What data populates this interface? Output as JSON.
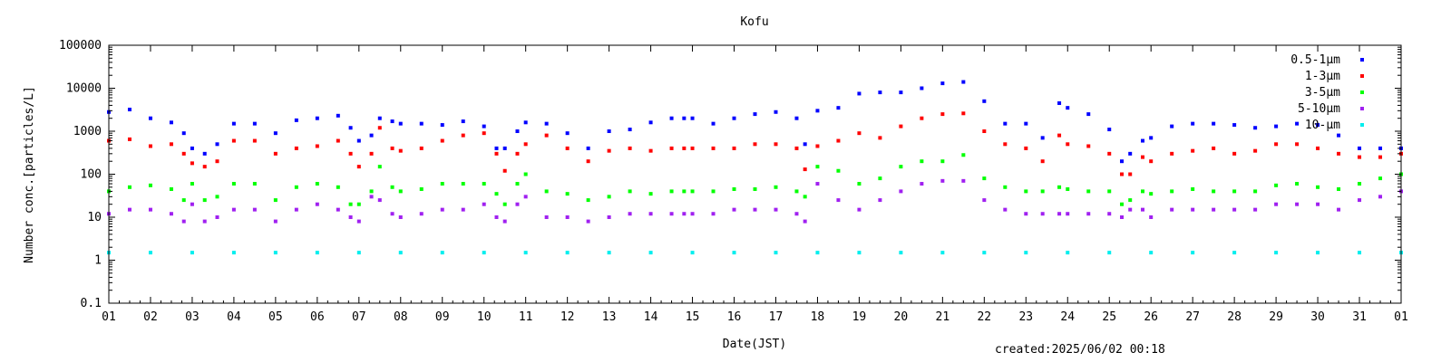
{
  "chart_data": {
    "type": "scatter",
    "title": "Kofu",
    "xlabel": "Date(JST)",
    "ylabel": "Number conc.[particles/L]",
    "yscale": "log",
    "ylim": [
      0.1,
      100000
    ],
    "y_ticks": [
      "0.1",
      "1",
      "10",
      "100",
      "1000",
      "10000",
      "100000"
    ],
    "xlim": [
      1,
      32
    ],
    "x_ticks": [
      "01",
      "02",
      "03",
      "04",
      "05",
      "06",
      "07",
      "08",
      "09",
      "10",
      "11",
      "12",
      "13",
      "14",
      "15",
      "16",
      "17",
      "18",
      "19",
      "20",
      "21",
      "22",
      "23",
      "24",
      "25",
      "26",
      "27",
      "28",
      "29",
      "30",
      "31",
      "01"
    ],
    "legend_position": "top-right",
    "grid": false,
    "footer": "created:2025/06/02 00:18",
    "series": [
      {
        "name": "0.5-1μm",
        "color": "#0000ff",
        "x": [
          1.0,
          1.5,
          2.0,
          2.5,
          2.8,
          3.0,
          3.3,
          3.6,
          4.0,
          4.5,
          5.0,
          5.5,
          6.0,
          6.5,
          6.8,
          7.0,
          7.3,
          7.5,
          7.8,
          8.0,
          8.5,
          9.0,
          9.5,
          10.0,
          10.3,
          10.5,
          10.8,
          11.0,
          11.5,
          12.0,
          12.5,
          13.0,
          13.5,
          14.0,
          14.5,
          14.8,
          15.0,
          15.5,
          16.0,
          16.5,
          17.0,
          17.5,
          17.7,
          18.0,
          18.5,
          19.0,
          19.5,
          20.0,
          20.5,
          21.0,
          21.5,
          22.0,
          22.5,
          23.0,
          23.4,
          23.8,
          24.0,
          24.5,
          25.0,
          25.3,
          25.5,
          25.8,
          26.0,
          26.5,
          27.0,
          27.5,
          28.0,
          28.5,
          29.0,
          29.5,
          30.0,
          30.5,
          31.0,
          31.5,
          32.0
        ],
        "y": [
          2800,
          3200,
          2000,
          1600,
          900,
          400,
          300,
          500,
          1500,
          1500,
          900,
          1800,
          2000,
          2300,
          1200,
          600,
          800,
          2000,
          1700,
          1500,
          1500,
          1400,
          1700,
          1300,
          400,
          400,
          1000,
          1600,
          1500,
          900,
          400,
          1000,
          1100,
          1600,
          2000,
          2000,
          2000,
          1500,
          2000,
          2500,
          2800,
          2000,
          500,
          3000,
          3500,
          7500,
          8000,
          8000,
          10000,
          13000,
          14000,
          5000,
          1500,
          1500,
          700,
          4500,
          3500,
          2500,
          1100,
          200,
          300,
          600,
          700,
          1300,
          1500,
          1500,
          1400,
          1200,
          1300,
          1500,
          1400,
          800,
          400,
          400,
          400
        ]
      },
      {
        "name": "1-3μm",
        "color": "#ff0000",
        "x": [
          1.0,
          1.5,
          2.0,
          2.5,
          2.8,
          3.0,
          3.3,
          3.6,
          4.0,
          4.5,
          5.0,
          5.5,
          6.0,
          6.5,
          6.8,
          7.0,
          7.3,
          7.5,
          7.8,
          8.0,
          8.5,
          9.0,
          9.5,
          10.0,
          10.3,
          10.5,
          10.8,
          11.0,
          11.5,
          12.0,
          12.5,
          13.0,
          13.5,
          14.0,
          14.5,
          14.8,
          15.0,
          15.5,
          16.0,
          16.5,
          17.0,
          17.5,
          17.7,
          18.0,
          18.5,
          19.0,
          19.5,
          20.0,
          20.5,
          21.0,
          21.5,
          22.0,
          22.5,
          23.0,
          23.4,
          23.8,
          24.0,
          24.5,
          25.0,
          25.3,
          25.5,
          25.8,
          26.0,
          26.5,
          27.0,
          27.5,
          28.0,
          28.5,
          29.0,
          29.5,
          30.0,
          30.5,
          31.0,
          31.5,
          32.0
        ],
        "y": [
          600,
          650,
          450,
          500,
          300,
          180,
          150,
          200,
          600,
          600,
          300,
          400,
          450,
          600,
          300,
          150,
          300,
          1200,
          400,
          350,
          400,
          600,
          800,
          900,
          300,
          120,
          300,
          500,
          800,
          400,
          200,
          350,
          400,
          350,
          400,
          400,
          400,
          400,
          400,
          500,
          500,
          400,
          130,
          450,
          600,
          900,
          700,
          1300,
          2000,
          2500,
          2600,
          1000,
          500,
          400,
          200,
          800,
          500,
          450,
          300,
          100,
          100,
          250,
          200,
          300,
          350,
          400,
          300,
          350,
          500,
          500,
          400,
          300,
          250,
          250,
          300
        ]
      },
      {
        "name": "3-5μm",
        "color": "#00ff00",
        "x": [
          1.0,
          1.5,
          2.0,
          2.5,
          2.8,
          3.0,
          3.3,
          3.6,
          4.0,
          4.5,
          5.0,
          5.5,
          6.0,
          6.5,
          6.8,
          7.0,
          7.3,
          7.5,
          7.8,
          8.0,
          8.5,
          9.0,
          9.5,
          10.0,
          10.3,
          10.5,
          10.8,
          11.0,
          11.5,
          12.0,
          12.5,
          13.0,
          13.5,
          14.0,
          14.5,
          14.8,
          15.0,
          15.5,
          16.0,
          16.5,
          17.0,
          17.5,
          17.7,
          18.0,
          18.5,
          19.0,
          19.5,
          20.0,
          20.5,
          21.0,
          21.5,
          22.0,
          22.5,
          23.0,
          23.4,
          23.8,
          24.0,
          24.5,
          25.0,
          25.3,
          25.5,
          25.8,
          26.0,
          26.5,
          27.0,
          27.5,
          28.0,
          28.5,
          29.0,
          29.5,
          30.0,
          30.5,
          31.0,
          31.5,
          32.0
        ],
        "y": [
          40,
          50,
          55,
          45,
          25,
          60,
          25,
          30,
          60,
          60,
          25,
          50,
          60,
          50,
          20,
          20,
          40,
          150,
          50,
          40,
          45,
          60,
          60,
          60,
          35,
          20,
          60,
          100,
          40,
          35,
          25,
          30,
          40,
          35,
          40,
          40,
          40,
          40,
          45,
          45,
          50,
          40,
          30,
          150,
          120,
          60,
          80,
          150,
          200,
          200,
          280,
          80,
          50,
          40,
          40,
          50,
          45,
          40,
          40,
          20,
          25,
          40,
          35,
          40,
          45,
          40,
          40,
          40,
          55,
          60,
          50,
          45,
          60,
          80,
          100
        ]
      },
      {
        "name": "5-10μm",
        "color": "#a020f0",
        "x": [
          1.0,
          1.5,
          2.0,
          2.5,
          2.8,
          3.0,
          3.3,
          3.6,
          4.0,
          4.5,
          5.0,
          5.5,
          6.0,
          6.5,
          6.8,
          7.0,
          7.3,
          7.5,
          7.8,
          8.0,
          8.5,
          9.0,
          9.5,
          10.0,
          10.3,
          10.5,
          10.8,
          11.0,
          11.5,
          12.0,
          12.5,
          13.0,
          13.5,
          14.0,
          14.5,
          14.8,
          15.0,
          15.5,
          16.0,
          16.5,
          17.0,
          17.5,
          17.7,
          18.0,
          18.5,
          19.0,
          19.5,
          20.0,
          20.5,
          21.0,
          21.5,
          22.0,
          22.5,
          23.0,
          23.4,
          23.8,
          24.0,
          24.5,
          25.0,
          25.3,
          25.5,
          25.8,
          26.0,
          26.5,
          27.0,
          27.5,
          28.0,
          28.5,
          29.0,
          29.5,
          30.0,
          30.5,
          31.0,
          31.5,
          32.0
        ],
        "y": [
          12,
          15,
          15,
          12,
          8,
          20,
          8,
          10,
          15,
          15,
          8,
          15,
          20,
          15,
          10,
          8,
          30,
          25,
          12,
          10,
          12,
          15,
          15,
          20,
          10,
          8,
          20,
          30,
          10,
          10,
          8,
          10,
          12,
          12,
          12,
          12,
          12,
          12,
          15,
          15,
          15,
          12,
          8,
          60,
          25,
          15,
          25,
          40,
          60,
          70,
          70,
          25,
          15,
          12,
          12,
          12,
          12,
          12,
          12,
          10,
          15,
          15,
          10,
          15,
          15,
          15,
          15,
          15,
          20,
          20,
          20,
          15,
          25,
          30,
          40
        ]
      },
      {
        "name": "10-μm",
        "color": "#00eeee",
        "x": [
          1.0,
          2.0,
          3.0,
          4.0,
          5.0,
          6.0,
          7.0,
          8.0,
          9.0,
          10.0,
          11.0,
          12.0,
          13.0,
          14.0,
          15.0,
          16.0,
          17.0,
          18.0,
          19.0,
          20.0,
          21.0,
          22.0,
          23.0,
          24.0,
          25.0,
          26.0,
          27.0,
          28.0,
          29.0,
          30.0,
          31.0,
          32.0
        ],
        "y": [
          1.5,
          1.5,
          1.5,
          1.5,
          1.5,
          1.5,
          1.5,
          1.5,
          1.5,
          1.5,
          1.5,
          1.5,
          1.5,
          1.5,
          1.5,
          1.5,
          1.5,
          1.5,
          1.5,
          1.5,
          1.5,
          1.5,
          1.5,
          1.5,
          1.5,
          1.5,
          1.5,
          1.5,
          1.5,
          1.5,
          1.5,
          1.5
        ]
      }
    ]
  }
}
